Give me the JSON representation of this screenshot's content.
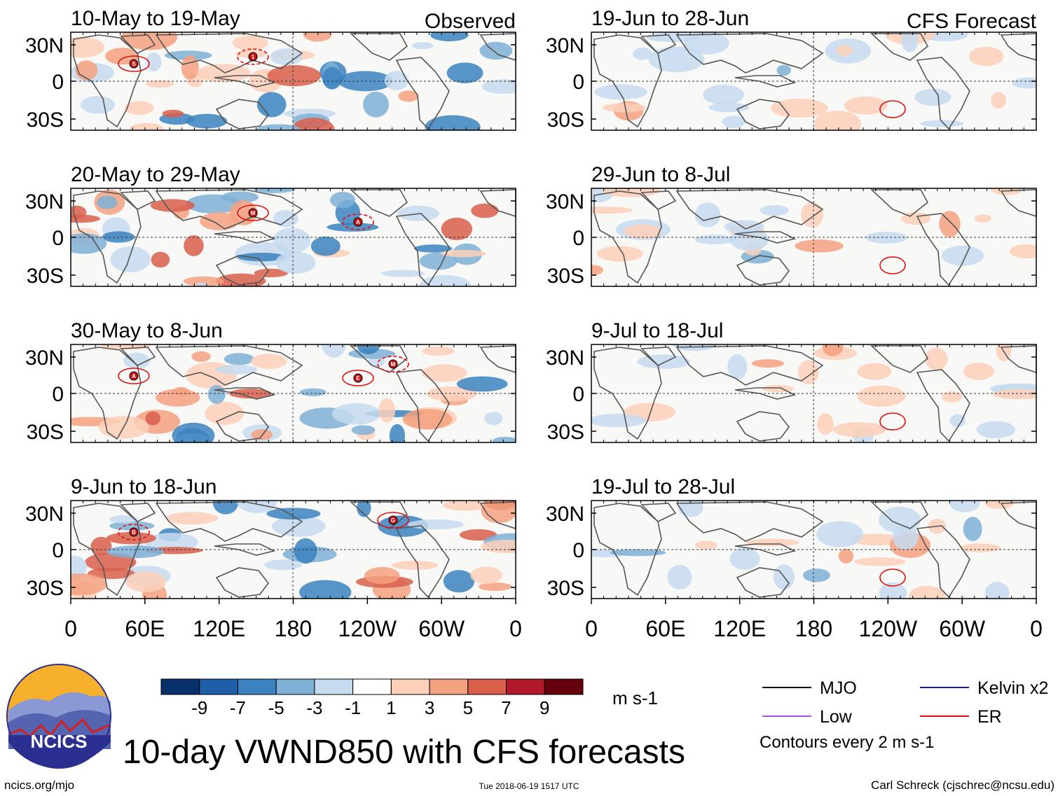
{
  "chart_data": {
    "type": "heatmap",
    "title": "10-day VWND850 with CFS forecasts",
    "variable": "VWND850",
    "units": "m s-1",
    "columns": [
      {
        "name": "Observed",
        "panels": [
          {
            "period": "10-May to 19-May",
            "storms": [
              "S",
              "1"
            ]
          },
          {
            "period": "20-May to 29-May",
            "storms": [
              "M",
              "A"
            ]
          },
          {
            "period": "30-May to 8-Jun",
            "storms": [
              "E",
              "M",
              "A"
            ]
          },
          {
            "period": "9-Jun to 18-Jun",
            "storms": [
              "G",
              "B"
            ]
          }
        ]
      },
      {
        "name": "CFS Forecast",
        "panels": [
          {
            "period": "19-Jun to 28-Jun",
            "storms": []
          },
          {
            "period": "29-Jun to 8-Jul",
            "storms": []
          },
          {
            "period": "9-Jul to 18-Jul",
            "storms": []
          },
          {
            "period": "19-Jul to 28-Jul",
            "storms": []
          }
        ]
      }
    ],
    "x_ticks": [
      "0",
      "60E",
      "120E",
      "180",
      "120W",
      "60W",
      "0"
    ],
    "y_ticks": [
      "30N",
      "0",
      "30S"
    ],
    "colorbar": {
      "labels": [
        "-9",
        "-7",
        "-5",
        "-3",
        "-1",
        "1",
        "3",
        "5",
        "7",
        "9"
      ],
      "colors": [
        "#08306b",
        "#1f5ea8",
        "#3b83c0",
        "#7fb0d6",
        "#c6dbef",
        "#ffffff",
        "#fdd0b8",
        "#f4a17f",
        "#d95f4c",
        "#b2182b",
        "#67000d"
      ],
      "units": "m s-1"
    },
    "legend": [
      {
        "label": "MJO",
        "color": "#000000"
      },
      {
        "label": "Kelvin x2",
        "color": "#1a1aa8"
      },
      {
        "label": "Low",
        "color": "#a452e0"
      },
      {
        "label": "ER",
        "color": "#e01010"
      }
    ],
    "contour_note": "Contours every 2 m s-1"
  },
  "footer": {
    "logo_text": "NCICS",
    "url": "ncics.org/mjo",
    "timestamp": "Tue 2018-06-19 1517 UTC",
    "author": "Carl Schreck (cjschrec@ncsu.edu)"
  }
}
